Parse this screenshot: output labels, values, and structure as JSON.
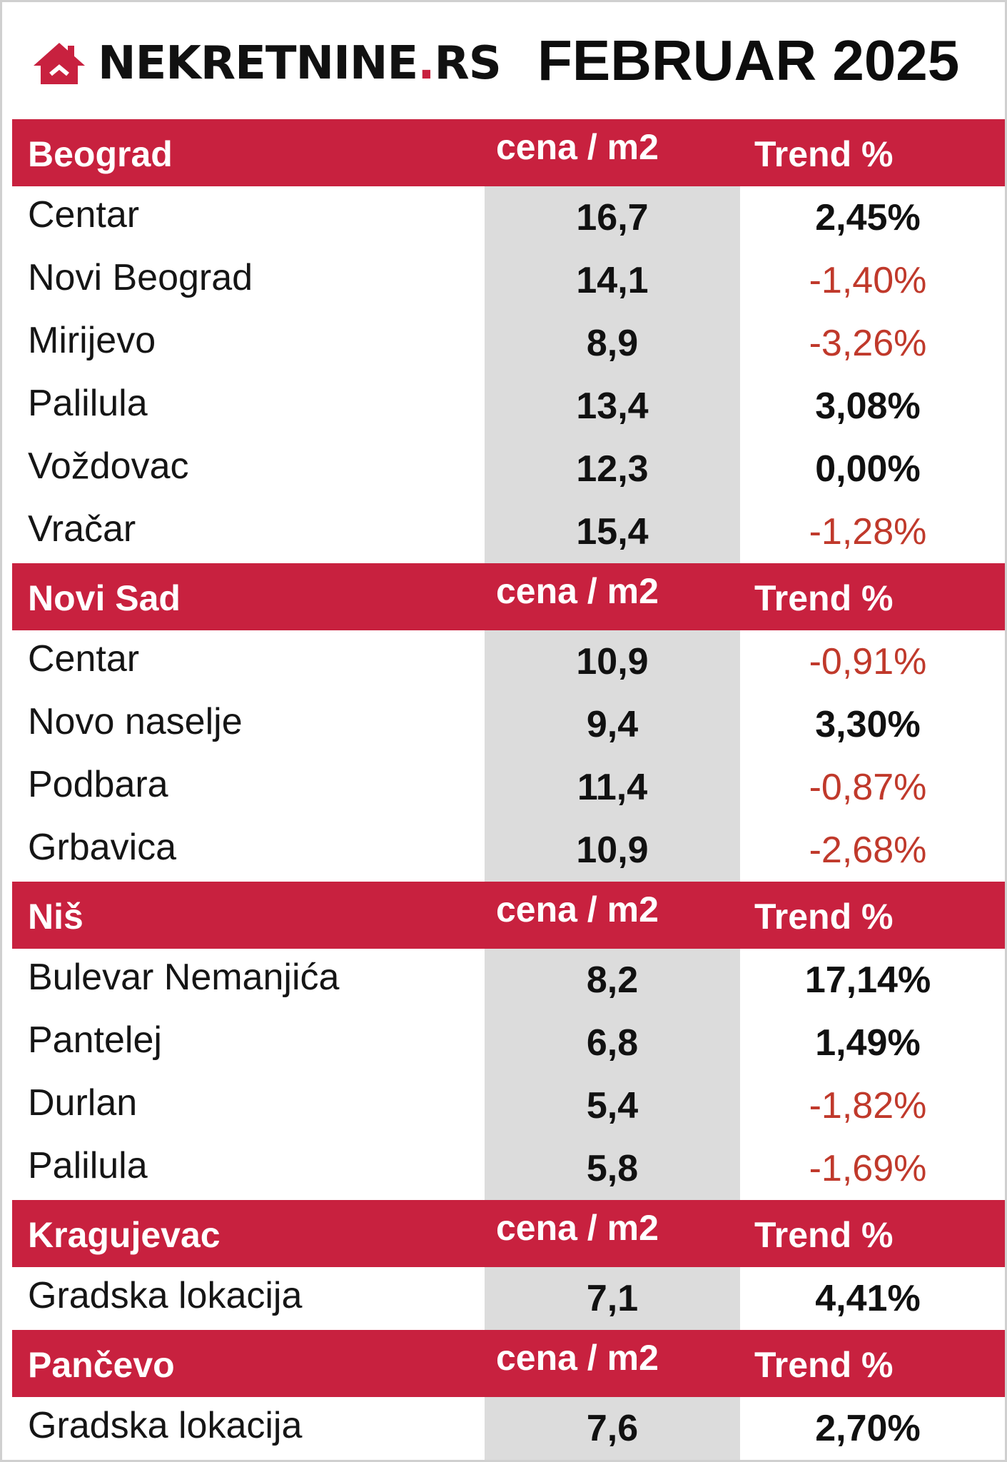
{
  "logo": {
    "main": "NEKRETNINE",
    "dot": ".",
    "suffix": "RS"
  },
  "period": "FEBRUAR 2025",
  "colors": {
    "accent": "#c8213f",
    "price_column": "#dcdcdc",
    "negative_trend": "#c0392b"
  },
  "sections": [
    {
      "city": "Beograd",
      "price_header": "cena / m2",
      "trend_header": "Trend %",
      "rows": [
        {
          "name": "Centar",
          "price": "16,7",
          "trend": "2,45%",
          "negative": false
        },
        {
          "name": "Novi Beograd",
          "price": "14,1",
          "trend": "-1,40%",
          "negative": true
        },
        {
          "name": "Mirijevo",
          "price": "8,9",
          "trend": "-3,26%",
          "negative": true
        },
        {
          "name": "Palilula",
          "price": "13,4",
          "trend": "3,08%",
          "negative": false
        },
        {
          "name": "Voždovac",
          "price": "12,3",
          "trend": "0,00%",
          "negative": false
        },
        {
          "name": "Vračar",
          "price": "15,4",
          "trend": "-1,28%",
          "negative": true
        }
      ]
    },
    {
      "city": "Novi Sad",
      "price_header": "cena / m2",
      "trend_header": "Trend %",
      "rows": [
        {
          "name": "Centar",
          "price": "10,9",
          "trend": "-0,91%",
          "negative": true
        },
        {
          "name": "Novo naselje",
          "price": "9,4",
          "trend": "3,30%",
          "negative": false
        },
        {
          "name": "Podbara",
          "price": "11,4",
          "trend": "-0,87%",
          "negative": true
        },
        {
          "name": "Grbavica",
          "price": "10,9",
          "trend": "-2,68%",
          "negative": true
        }
      ]
    },
    {
      "city": "Niš",
      "price_header": "cena / m2",
      "trend_header": "Trend %",
      "rows": [
        {
          "name": "Bulevar Nemanjića",
          "price": "8,2",
          "trend": "17,14%",
          "negative": false
        },
        {
          "name": "Pantelej",
          "price": "6,8",
          "trend": "1,49%",
          "negative": false
        },
        {
          "name": "Durlan",
          "price": "5,4",
          "trend": "-1,82%",
          "negative": true
        },
        {
          "name": "Palilula",
          "price": "5,8",
          "trend": "-1,69%",
          "negative": true
        }
      ]
    },
    {
      "city": "Kragujevac",
      "price_header": "cena / m2",
      "trend_header": "Trend %",
      "rows": [
        {
          "name": "Gradska lokacija",
          "price": "7,1",
          "trend": "4,41%",
          "negative": false
        }
      ]
    },
    {
      "city": "Pančevo",
      "price_header": "cena / m2",
      "trend_header": "Trend %",
      "rows": [
        {
          "name": "Gradska lokacija",
          "price": "7,6",
          "trend": "2,70%",
          "negative": false
        }
      ]
    }
  ]
}
